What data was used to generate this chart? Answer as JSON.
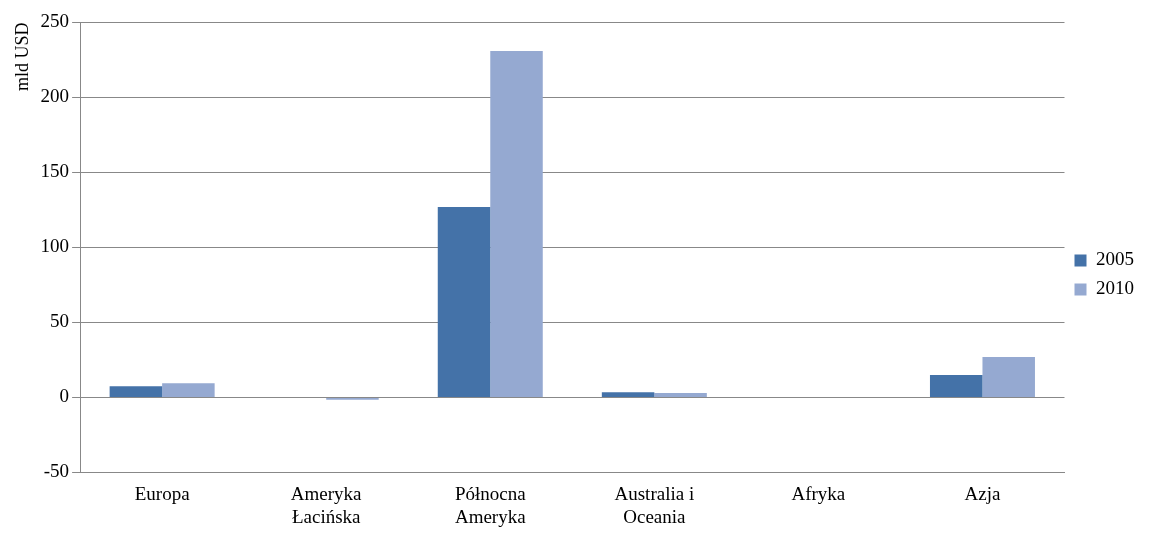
{
  "chart_data": {
    "type": "bar",
    "ylabel": "mld USD",
    "categories": [
      "Europa",
      "Ameryka Łacińska",
      "Północna Ameryka",
      "Australia i Oceania",
      "Afryka",
      "Azja"
    ],
    "series": [
      {
        "name": "2005",
        "color": "#4472a8",
        "values": [
          7.5,
          0,
          127,
          3.5,
          0,
          15
        ]
      },
      {
        "name": "2010",
        "color": "#95a9d1",
        "values": [
          9.5,
          -1.5,
          231,
          3,
          0,
          27
        ]
      }
    ],
    "ylim": [
      -50,
      250
    ],
    "yticks": [
      -50,
      0,
      50,
      100,
      150,
      200,
      250
    ],
    "grid": "y",
    "legend": "right"
  }
}
